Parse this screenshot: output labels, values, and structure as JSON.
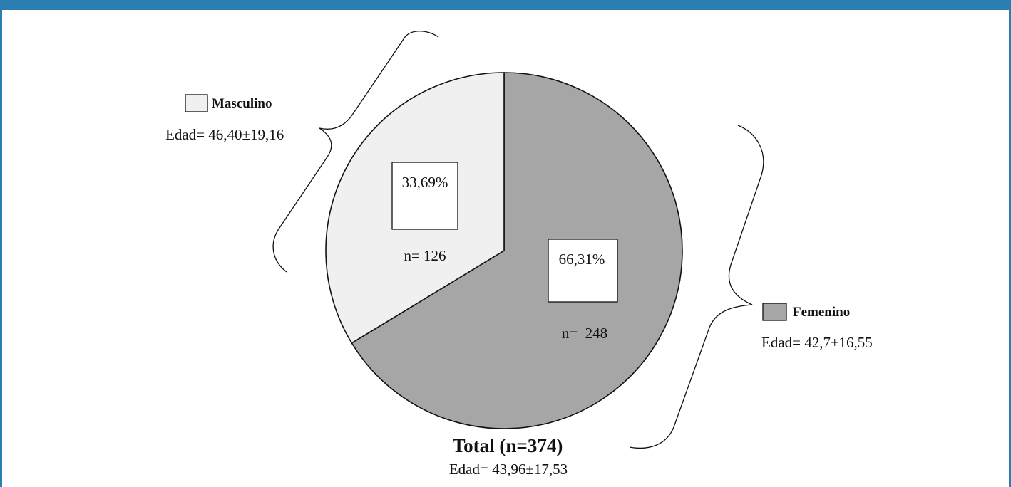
{
  "colors": {
    "frame": "#2a7fb0",
    "masculino": "#f0f0f0",
    "femenino": "#a6a6a6",
    "outline": "#111111"
  },
  "chart_data": {
    "type": "pie",
    "start_angle_deg": 0,
    "direction": "clockwise",
    "slices": [
      {
        "key": "femenino",
        "label": "Femenino",
        "percent": 66.31,
        "n": 248,
        "percent_text": "66,31%",
        "n_text": "n=  248",
        "age_text": "Edad= 42,7±16,55"
      },
      {
        "key": "masculino",
        "label": "Masculino",
        "percent": 33.69,
        "n": 126,
        "percent_text": "33,69%",
        "n_text": "n= 126",
        "age_text": "Edad= 46,40±19,16"
      }
    ],
    "total": {
      "label": "Total (n=374)",
      "n": 374,
      "age_text": "Edad= 43,96±17,53"
    }
  }
}
